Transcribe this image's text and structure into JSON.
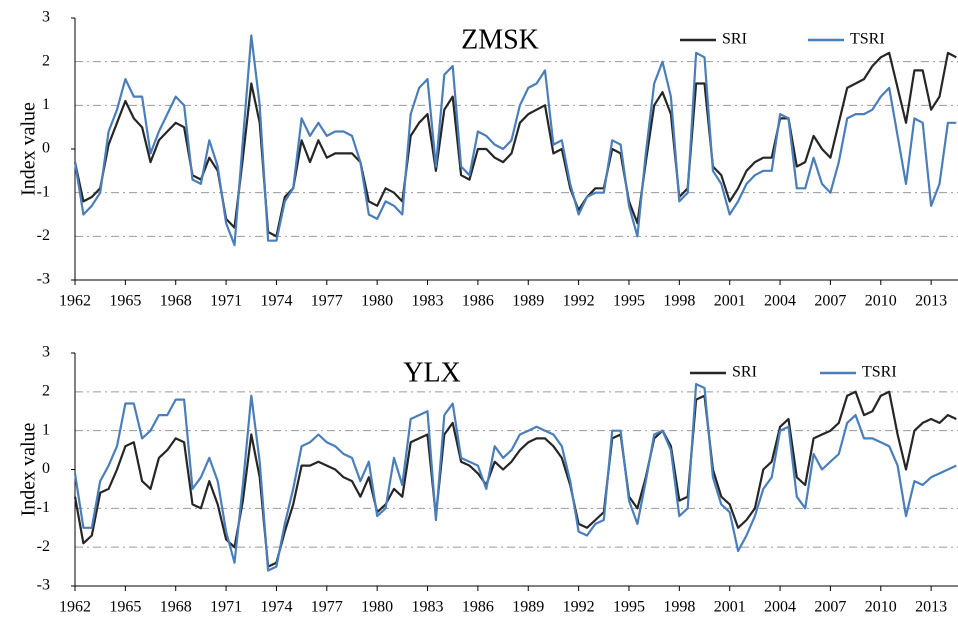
{
  "chart_data": [
    {
      "type": "line",
      "title": "ZMSK",
      "y_label": "Index value",
      "x": [
        1962,
        1962.5,
        1963,
        1963.5,
        1964,
        1964.5,
        1965,
        1965.5,
        1966,
        1966.5,
        1967,
        1967.5,
        1968,
        1968.5,
        1969,
        1969.5,
        1970,
        1970.5,
        1971,
        1971.5,
        1972,
        1972.5,
        1973,
        1973.5,
        1974,
        1974.5,
        1975,
        1975.5,
        1976,
        1976.5,
        1977,
        1977.5,
        1978,
        1978.5,
        1979,
        1979.5,
        1980,
        1980.5,
        1981,
        1981.5,
        1982,
        1982.5,
        1983,
        1983.5,
        1984,
        1984.5,
        1985,
        1985.5,
        1986,
        1986.5,
        1987,
        1987.5,
        1988,
        1988.5,
        1989,
        1989.5,
        1990,
        1990.5,
        1991,
        1991.5,
        1992,
        1992.5,
        1993,
        1993.5,
        1994,
        1994.5,
        1995,
        1995.5,
        1996,
        1996.5,
        1997,
        1997.5,
        1998,
        1998.5,
        1999,
        1999.5,
        2000,
        2000.5,
        2001,
        2001.5,
        2002,
        2002.5,
        2003,
        2003.5,
        2004,
        2004.5,
        2005,
        2005.5,
        2006,
        2006.5,
        2007,
        2007.5,
        2008,
        2008.5,
        2009,
        2009.5,
        2010,
        2010.5,
        2011,
        2011.5,
        2012,
        2012.5,
        2013,
        2013.5,
        2014,
        2014.5
      ],
      "series": [
        {
          "name": "SRI",
          "color": "#262626",
          "values": [
            -0.3,
            -1.2,
            -1.1,
            -0.9,
            0.1,
            0.6,
            1.1,
            0.7,
            0.5,
            -0.3,
            0.2,
            0.4,
            0.6,
            0.5,
            -0.6,
            -0.7,
            -0.2,
            -0.5,
            -1.6,
            -1.8,
            -0.2,
            1.5,
            0.6,
            -1.9,
            -2.0,
            -1.1,
            -0.9,
            0.2,
            -0.3,
            0.2,
            -0.2,
            -0.1,
            -0.1,
            -0.1,
            -0.3,
            -1.2,
            -1.3,
            -0.9,
            -1.0,
            -1.2,
            0.3,
            0.6,
            0.8,
            -0.5,
            0.9,
            1.2,
            -0.6,
            -0.7,
            0.0,
            0.0,
            -0.2,
            -0.3,
            -0.1,
            0.6,
            0.8,
            0.9,
            1.0,
            -0.1,
            0.0,
            -0.9,
            -1.4,
            -1.1,
            -0.9,
            -0.9,
            0.0,
            -0.1,
            -1.2,
            -1.7,
            -0.3,
            1.0,
            1.3,
            0.8,
            -1.1,
            -0.9,
            1.5,
            1.5,
            -0.4,
            -0.6,
            -1.2,
            -0.9,
            -0.5,
            -0.3,
            -0.2,
            -0.2,
            0.7,
            0.7,
            -0.4,
            -0.3,
            0.3,
            0.0,
            -0.2,
            0.6,
            1.4,
            1.5,
            1.6,
            1.9,
            2.1,
            2.2,
            1.4,
            0.6,
            1.8,
            1.8,
            0.9,
            1.2,
            2.2,
            2.1
          ]
        },
        {
          "name": "TSRI",
          "color": "#4a7ebb",
          "values": [
            -0.3,
            -1.5,
            -1.3,
            -1.0,
            0.4,
            0.9,
            1.6,
            1.2,
            1.2,
            -0.1,
            0.4,
            0.8,
            1.2,
            1.0,
            -0.7,
            -0.8,
            0.2,
            -0.4,
            -1.7,
            -2.2,
            0.2,
            2.6,
            1.0,
            -2.1,
            -2.1,
            -1.2,
            -0.9,
            0.7,
            0.3,
            0.6,
            0.3,
            0.4,
            0.4,
            0.3,
            -0.3,
            -1.5,
            -1.6,
            -1.2,
            -1.3,
            -1.5,
            0.8,
            1.4,
            1.6,
            -0.4,
            1.7,
            1.9,
            -0.4,
            -0.6,
            0.4,
            0.3,
            0.1,
            0.0,
            0.2,
            1.0,
            1.4,
            1.5,
            1.8,
            0.1,
            0.2,
            -0.8,
            -1.5,
            -1.1,
            -1.0,
            -1.0,
            0.2,
            0.1,
            -1.3,
            -2.0,
            -0.1,
            1.5,
            2.0,
            1.2,
            -1.2,
            -1.0,
            2.2,
            2.1,
            -0.5,
            -0.8,
            -1.5,
            -1.2,
            -0.8,
            -0.6,
            -0.5,
            -0.5,
            0.8,
            0.7,
            -0.9,
            -0.9,
            -0.2,
            -0.8,
            -1.0,
            -0.3,
            0.7,
            0.8,
            0.8,
            0.9,
            1.2,
            1.4,
            0.3,
            -0.8,
            0.7,
            0.6,
            -1.3,
            -0.8,
            0.6,
            0.6
          ]
        }
      ],
      "xlim": [
        1962,
        2014.6
      ],
      "xticks": [
        1962,
        1965,
        1968,
        1971,
        1974,
        1977,
        1980,
        1983,
        1986,
        1989,
        1992,
        1995,
        1998,
        2001,
        2004,
        2007,
        2010,
        2013
      ],
      "ylim": [
        -3,
        3
      ],
      "yticks": [
        -3,
        -2,
        -1,
        0,
        1,
        2,
        3
      ],
      "grid": true
    },
    {
      "type": "line",
      "title": "YLX",
      "y_label": "Index value",
      "x": [
        1962,
        1962.5,
        1963,
        1963.5,
        1964,
        1964.5,
        1965,
        1965.5,
        1966,
        1966.5,
        1967,
        1967.5,
        1968,
        1968.5,
        1969,
        1969.5,
        1970,
        1970.5,
        1971,
        1971.5,
        1972,
        1972.5,
        1973,
        1973.5,
        1974,
        1974.5,
        1975,
        1975.5,
        1976,
        1976.5,
        1977,
        1977.5,
        1978,
        1978.5,
        1979,
        1979.5,
        1980,
        1980.5,
        1981,
        1981.5,
        1982,
        1982.5,
        1983,
        1983.5,
        1984,
        1984.5,
        1985,
        1985.5,
        1986,
        1986.5,
        1987,
        1987.5,
        1988,
        1988.5,
        1989,
        1989.5,
        1990,
        1990.5,
        1991,
        1991.5,
        1992,
        1992.5,
        1993,
        1993.5,
        1994,
        1994.5,
        1995,
        1995.5,
        1996,
        1996.5,
        1997,
        1997.5,
        1998,
        1998.5,
        1999,
        1999.5,
        2000,
        2000.5,
        2001,
        2001.5,
        2002,
        2002.5,
        2003,
        2003.5,
        2004,
        2004.5,
        2005,
        2005.5,
        2006,
        2006.5,
        2007,
        2007.5,
        2008,
        2008.5,
        2009,
        2009.5,
        2010,
        2010.5,
        2011,
        2011.5,
        2012,
        2012.5,
        2013,
        2013.5,
        2014,
        2014.5
      ],
      "series": [
        {
          "name": "SRI",
          "color": "#262626",
          "values": [
            -0.7,
            -1.9,
            -1.7,
            -0.6,
            -0.5,
            0.0,
            0.6,
            0.7,
            -0.3,
            -0.5,
            0.3,
            0.5,
            0.8,
            0.7,
            -0.9,
            -1.0,
            -0.3,
            -0.9,
            -1.8,
            -2.0,
            -0.8,
            0.9,
            -0.2,
            -2.5,
            -2.4,
            -1.6,
            -0.9,
            0.1,
            0.1,
            0.2,
            0.1,
            0.0,
            -0.2,
            -0.3,
            -0.7,
            -0.2,
            -1.1,
            -0.9,
            -0.5,
            -0.7,
            0.7,
            0.8,
            0.9,
            -1.2,
            0.9,
            1.2,
            0.2,
            0.1,
            -0.1,
            -0.4,
            0.2,
            0.0,
            0.2,
            0.5,
            0.7,
            0.8,
            0.8,
            0.6,
            0.3,
            -0.4,
            -1.4,
            -1.5,
            -1.3,
            -1.1,
            0.8,
            0.9,
            -0.7,
            -1.0,
            -0.2,
            0.8,
            1.0,
            0.6,
            -0.8,
            -0.7,
            1.8,
            1.9,
            0.0,
            -0.7,
            -0.9,
            -1.5,
            -1.3,
            -1.0,
            0.0,
            0.2,
            1.1,
            1.3,
            -0.2,
            -0.4,
            0.8,
            0.9,
            1.0,
            1.2,
            1.9,
            2.0,
            1.4,
            1.5,
            1.9,
            2.0,
            0.9,
            0.0,
            1.0,
            1.2,
            1.3,
            1.2,
            1.4,
            1.3
          ]
        },
        {
          "name": "TSRI",
          "color": "#4a7ebb",
          "values": [
            -0.1,
            -1.5,
            -1.5,
            -0.3,
            0.1,
            0.6,
            1.7,
            1.7,
            0.8,
            1.0,
            1.4,
            1.4,
            1.8,
            1.8,
            -0.5,
            -0.2,
            0.3,
            -0.3,
            -1.6,
            -2.4,
            -0.4,
            1.9,
            0.2,
            -2.6,
            -2.5,
            -1.4,
            -0.5,
            0.6,
            0.7,
            0.9,
            0.7,
            0.6,
            0.4,
            0.3,
            -0.3,
            0.2,
            -1.2,
            -1.0,
            0.3,
            -0.4,
            1.3,
            1.4,
            1.5,
            -1.3,
            1.4,
            1.7,
            0.3,
            0.2,
            0.1,
            -0.5,
            0.6,
            0.3,
            0.5,
            0.9,
            1.0,
            1.1,
            1.0,
            0.9,
            0.6,
            -0.3,
            -1.6,
            -1.7,
            -1.4,
            -1.3,
            1.0,
            1.0,
            -0.8,
            -1.4,
            -0.3,
            0.9,
            1.0,
            0.5,
            -1.2,
            -1.0,
            2.2,
            2.1,
            -0.2,
            -0.9,
            -1.1,
            -2.1,
            -1.7,
            -1.2,
            -0.5,
            -0.2,
            1.0,
            1.1,
            -0.7,
            -1.0,
            0.4,
            0.0,
            0.2,
            0.4,
            1.2,
            1.4,
            0.8,
            0.8,
            0.7,
            0.6,
            0.1,
            -1.2,
            -0.3,
            -0.4,
            -0.2,
            -0.1,
            0.0,
            0.1
          ]
        }
      ],
      "xlim": [
        1962,
        2014.6
      ],
      "xticks": [
        1962,
        1965,
        1968,
        1971,
        1974,
        1977,
        1980,
        1983,
        1986,
        1989,
        1992,
        1995,
        1998,
        2001,
        2004,
        2007,
        2010,
        2013
      ],
      "ylim": [
        -3,
        3
      ],
      "yticks": [
        -3,
        -2,
        -1,
        0,
        1,
        2,
        3
      ],
      "grid": true
    }
  ]
}
